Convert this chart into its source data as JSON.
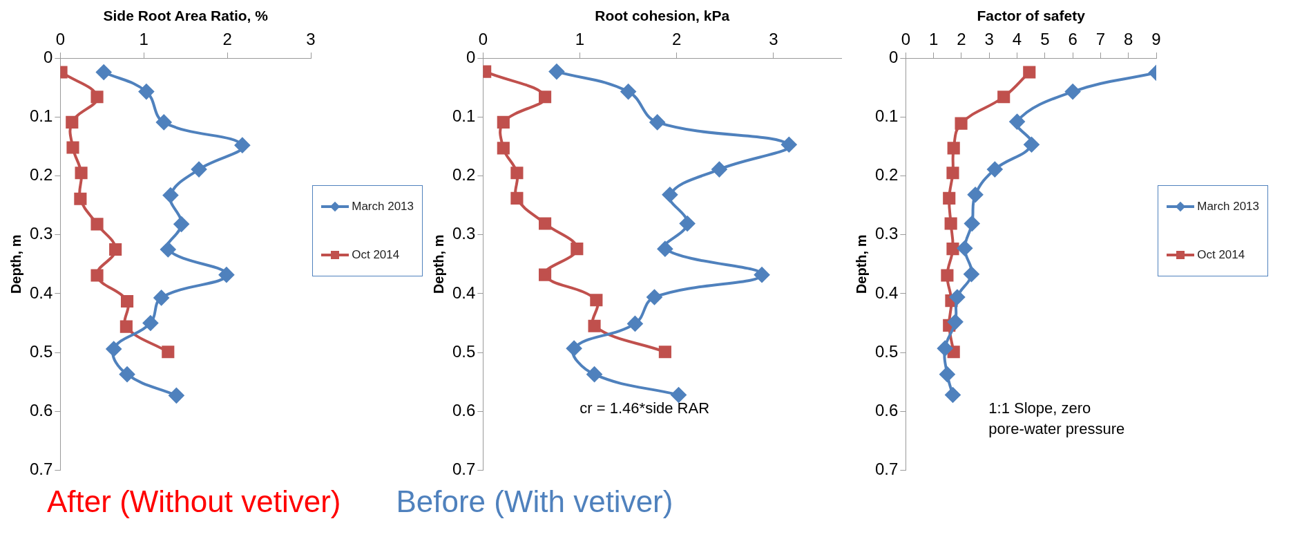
{
  "chart_data": [
    {
      "type": "line",
      "xlabel": "Side Root Area Ratio, %",
      "ylabel": "Depth, m",
      "xlim": [
        0,
        3
      ],
      "xticks": [
        0,
        1,
        2,
        3
      ],
      "ylim": [
        0.7,
        0
      ],
      "yticks": [
        0,
        0.1,
        0.2,
        0.3,
        0.4,
        0.5,
        0.6,
        0.7
      ],
      "grid": false,
      "legend": "right",
      "series": [
        {
          "name": "March 2013",
          "color": "#4f81bd",
          "marker": "diamond",
          "x": [
            0.52,
            1.03,
            1.24,
            2.18,
            1.66,
            1.32,
            1.45,
            1.29,
            1.99,
            1.21,
            1.08,
            0.64,
            0.8,
            1.39
          ],
          "values": [
            0.024,
            0.057,
            0.109,
            0.148,
            0.189,
            0.233,
            0.282,
            0.325,
            0.368,
            0.407,
            0.45,
            0.494,
            0.537,
            0.573
          ]
        },
        {
          "name": "Oct 2014",
          "color": "#c0504d",
          "marker": "square",
          "x": [
            0.01,
            0.44,
            0.14,
            0.15,
            0.25,
            0.24,
            0.44,
            0.66,
            0.44,
            0.8,
            0.79,
            1.29
          ],
          "values": [
            0.024,
            0.066,
            0.109,
            0.152,
            0.195,
            0.239,
            0.282,
            0.325,
            0.369,
            0.413,
            0.456,
            0.499
          ]
        }
      ]
    },
    {
      "type": "line",
      "xlabel": "Root cohesion, kPa",
      "ylabel": "Depth, m",
      "xlim": [
        0,
        3.7
      ],
      "xticks": [
        0,
        1,
        2,
        3
      ],
      "ylim": [
        0.7,
        0
      ],
      "yticks": [
        0,
        0.1,
        0.2,
        0.3,
        0.4,
        0.5,
        0.6,
        0.7
      ],
      "grid": false,
      "annotations": [
        "cr = 1.46*side RAR"
      ],
      "series": [
        {
          "color": "#4f81bd",
          "marker": "diamond",
          "x": [
            0.76,
            1.5,
            1.8,
            3.16,
            2.44,
            1.93,
            2.11,
            1.88,
            2.88,
            1.77,
            1.57,
            0.94,
            1.15,
            2.02
          ],
          "values": [
            0.023,
            0.057,
            0.109,
            0.147,
            0.189,
            0.232,
            0.281,
            0.324,
            0.368,
            0.406,
            0.451,
            0.493,
            0.537,
            0.572
          ]
        },
        {
          "color": "#c0504d",
          "marker": "square",
          "x": [
            0.02,
            0.64,
            0.21,
            0.21,
            0.35,
            0.35,
            0.64,
            0.97,
            0.64,
            1.17,
            1.15,
            1.88
          ],
          "values": [
            0.023,
            0.066,
            0.109,
            0.153,
            0.195,
            0.238,
            0.281,
            0.324,
            0.368,
            0.411,
            0.455,
            0.499
          ]
        }
      ]
    },
    {
      "type": "line",
      "xlabel": "Factor of safety",
      "ylabel": "Depth, m",
      "xlim": [
        0,
        9
      ],
      "xticks": [
        0,
        1,
        2,
        3,
        4,
        5,
        6,
        7,
        8,
        9
      ],
      "ylim": [
        0.7,
        0
      ],
      "yticks": [
        0,
        0.1,
        0.2,
        0.3,
        0.4,
        0.5,
        0.6,
        0.7
      ],
      "grid": false,
      "legend": "right",
      "annotations": [
        "1:1 Slope, zero pore-water pressure"
      ],
      "series": [
        {
          "name": "March 2013",
          "color": "#4f81bd",
          "marker": "diamond",
          "x": [
            9,
            6.0,
            4.0,
            4.52,
            3.2,
            2.5,
            2.38,
            2.12,
            2.36,
            1.85,
            1.78,
            1.41,
            1.49,
            1.69
          ],
          "values": [
            0.025,
            0.057,
            0.108,
            0.147,
            0.189,
            0.232,
            0.281,
            0.323,
            0.367,
            0.406,
            0.448,
            0.493,
            0.537,
            0.572
          ]
        },
        {
          "name": "Oct 2014",
          "color": "#c0504d",
          "marker": "square",
          "x": [
            4.44,
            3.52,
            1.99,
            1.72,
            1.69,
            1.56,
            1.62,
            1.69,
            1.49,
            1.64,
            1.56,
            1.72
          ],
          "values": [
            0.024,
            0.066,
            0.111,
            0.153,
            0.195,
            0.238,
            0.281,
            0.324,
            0.369,
            0.412,
            0.454,
            0.499
          ]
        }
      ]
    },
    {
      "type": "other",
      "annotations": [
        "After (Without vetiver)",
        "Before (With vetiver)"
      ],
      "colors": [
        "#ff0000",
        "#4f81bd"
      ]
    }
  ]
}
